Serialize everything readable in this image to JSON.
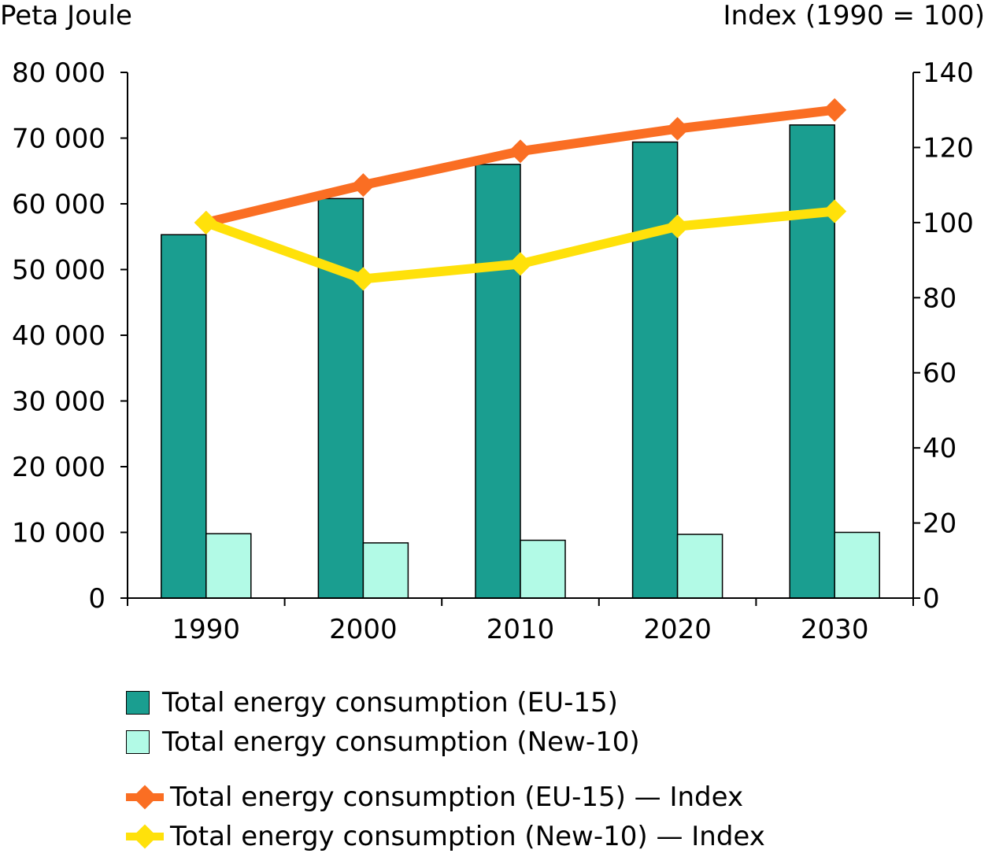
{
  "colors": {
    "eu15_bar": "#1a9e90",
    "new10_bar": "#b2fae6",
    "eu15_line": "#fa6e23",
    "new10_line": "#ffe10a"
  },
  "chart_data": {
    "type": "bar+line",
    "left_axis_title": "Peta Joule",
    "right_axis_title": "Index (1990 = 100)",
    "categories": [
      "1990",
      "2000",
      "2010",
      "2020",
      "2030"
    ],
    "y_left": {
      "min": 0,
      "max": 80000,
      "ticks": [
        0,
        10000,
        20000,
        30000,
        40000,
        50000,
        60000,
        70000,
        80000
      ],
      "tick_labels": [
        "0",
        "10 000",
        "20 000",
        "30 000",
        "40 000",
        "50 000",
        "60 000",
        "70 000",
        "80 000"
      ]
    },
    "y_right": {
      "min": 0,
      "max": 140,
      "ticks": [
        0,
        20,
        40,
        60,
        80,
        100,
        120,
        140
      ],
      "tick_labels": [
        "0",
        "20",
        "40",
        "60",
        "80",
        "100",
        "120",
        "140"
      ]
    },
    "bars": [
      {
        "name": "Total energy consumption (EU-15)",
        "values": [
          55300,
          60800,
          66000,
          69400,
          72000
        ]
      },
      {
        "name": "Total energy consumption (New-10)",
        "values": [
          9800,
          8400,
          8800,
          9700,
          10000
        ]
      }
    ],
    "lines": [
      {
        "name": "Total energy consumption (EU-15) — Index",
        "values": [
          100,
          110,
          119,
          125,
          130
        ]
      },
      {
        "name": "Total energy consumption (New-10) — Index",
        "values": [
          100,
          85,
          89,
          99,
          103
        ]
      }
    ],
    "grid": false,
    "legend_position": "bottom"
  }
}
